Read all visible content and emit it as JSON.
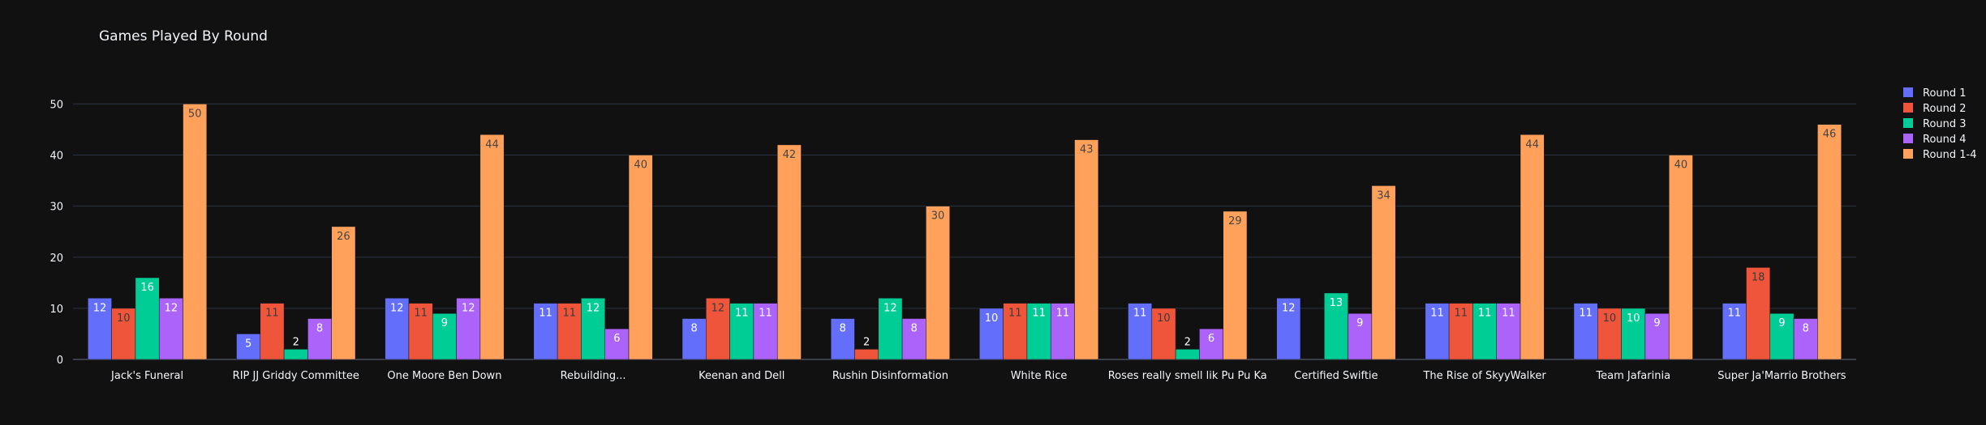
{
  "chart_data": {
    "type": "bar",
    "title": "Games Played By Round",
    "xlabel": "",
    "ylabel": "",
    "ylim": [
      0,
      52.6
    ],
    "yticks": [
      0,
      10,
      20,
      30,
      40,
      50
    ],
    "grid": true,
    "legend_position": "top-right",
    "categories": [
      "Jack's Funeral",
      "RIP JJ Griddy Committee",
      "One Moore Ben Down",
      "Rebuilding...",
      "Keenan and Dell",
      "Rushin Disinformation",
      "White Rice",
      "Roses really smell lik Pu Pu Ka",
      "Certified Swiftie",
      "The Rise of SkyyWalker",
      "Team Jafarinia",
      "Super Ja'Marrio Brothers"
    ],
    "series": [
      {
        "name": "Round 1",
        "color": "#636efa",
        "values": [
          12,
          5,
          12,
          11,
          8,
          8,
          10,
          11,
          12,
          11,
          11,
          11
        ],
        "labels": [
          "12",
          "5",
          "12",
          "11",
          "8",
          "8",
          "10",
          "11",
          "12",
          "11",
          "11",
          "11"
        ]
      },
      {
        "name": "Round 2",
        "color": "#ef553b",
        "values": [
          10,
          11,
          11,
          11,
          12,
          2,
          11,
          10,
          null,
          11,
          10,
          18
        ],
        "labels": [
          "10",
          "11",
          "11",
          "11",
          "12",
          "2",
          "11",
          "10",
          "",
          "11",
          "10",
          "18"
        ]
      },
      {
        "name": "Round 3",
        "color": "#00cc96",
        "values": [
          16,
          2,
          9,
          12,
          11,
          12,
          11,
          2,
          13,
          11,
          10,
          9
        ],
        "labels": [
          "16",
          "2",
          "9",
          "12",
          "11",
          "12",
          "11",
          "2",
          "13",
          "11",
          "10",
          "9"
        ]
      },
      {
        "name": "Round 4",
        "color": "#ab63fa",
        "values": [
          12,
          8,
          12,
          6,
          11,
          8,
          11,
          6,
          9,
          11,
          9,
          8
        ],
        "labels": [
          "12",
          "8",
          "12",
          "6",
          "11",
          "8",
          "11",
          "6",
          "9",
          "11",
          "9",
          "8"
        ]
      },
      {
        "name": "Round 1-4",
        "color": "#ffa15a",
        "values": [
          50,
          26,
          44,
          40,
          42,
          30,
          43,
          29,
          34,
          44,
          40,
          46
        ],
        "labels": [
          "50",
          "26",
          "44",
          "40",
          "42",
          "30",
          "43",
          "29",
          "34",
          "44",
          "40",
          "46"
        ]
      }
    ]
  }
}
